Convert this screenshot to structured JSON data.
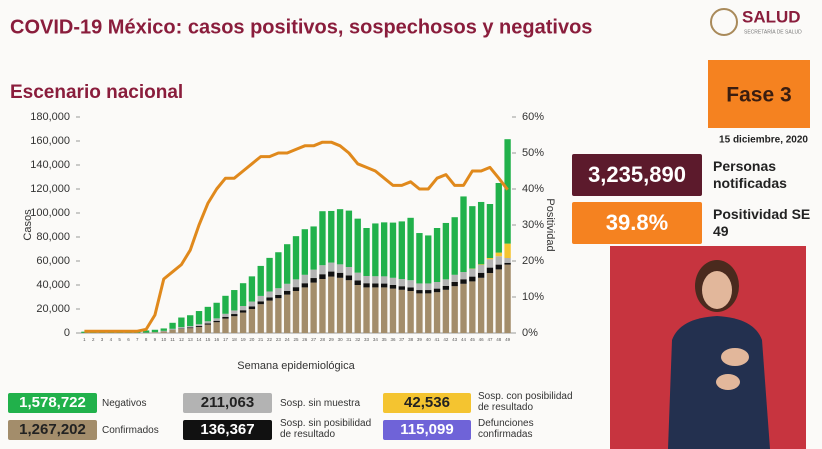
{
  "header": {
    "title": "COVID-19 México: casos positivos, sospechosos y negativos",
    "logo": "SALUD",
    "logo_sub": "SECRETARÍA DE SALUD"
  },
  "subtitle": "Escenario nacional",
  "phase": "Fase 3",
  "date": "15 diciembre, 2020",
  "notified": {
    "value": "3,235,890",
    "label": "Personas notificadas"
  },
  "positivity": {
    "value": "39.8%",
    "label": "Positividad SE 49"
  },
  "chart_data": {
    "type": "bar",
    "stacked": true,
    "x_label": "Semana epidemiológica",
    "y_label": "Casos",
    "categories": [
      "1",
      "2",
      "3",
      "4",
      "5",
      "6",
      "7",
      "8",
      "9",
      "10",
      "11",
      "12",
      "13",
      "14",
      "15",
      "16",
      "17",
      "18",
      "19",
      "20",
      "21",
      "22",
      "23",
      "24",
      "25",
      "26",
      "27",
      "28",
      "29",
      "30",
      "31",
      "32",
      "33",
      "34",
      "35",
      "36",
      "37",
      "38",
      "39",
      "40",
      "41",
      "42",
      "43",
      "44",
      "45",
      "46",
      "47",
      "48",
      "49"
    ],
    "ylim": [
      0,
      180000
    ],
    "yticks": [
      0,
      {
        "value": 20000,
        "label": "20,000"
      },
      {
        "value": 40000,
        "label": "40,000"
      },
      {
        "value": 60000,
        "label": "60,000"
      },
      {
        "value": 80000,
        "label": "80,000"
      },
      {
        "value": 100000,
        "label": "100,000"
      },
      {
        "value": 120000,
        "label": "120,000"
      },
      {
        "value": 140000,
        "label": "140,000"
      },
      {
        "value": 160000,
        "label": "160,000"
      },
      {
        "value": 180000,
        "label": "180,000"
      }
    ],
    "y2lim": [
      0,
      60
    ],
    "y2ticks": [
      {
        "value": 0,
        "label": "0%"
      },
      {
        "value": 10,
        "label": "10%"
      },
      {
        "value": 20,
        "label": "20%"
      },
      {
        "value": 30,
        "label": "30%"
      },
      {
        "value": 40,
        "label": "40%"
      },
      {
        "value": 50,
        "label": "50%"
      },
      {
        "value": 60,
        "label": "60%"
      }
    ],
    "series": [
      {
        "name": "Confirmados",
        "color": "#a38d6b",
        "total": "1,267,202",
        "values": [
          0,
          0,
          1,
          5,
          10,
          20,
          40,
          200,
          600,
          1200,
          2500,
          3500,
          4000,
          5000,
          7000,
          9000,
          12000,
          14000,
          17000,
          20000,
          24000,
          27000,
          29000,
          32000,
          35000,
          38000,
          42000,
          45000,
          47000,
          46000,
          44000,
          40000,
          38000,
          38000,
          38000,
          37000,
          36000,
          35000,
          33000,
          33000,
          34000,
          36000,
          39000,
          41000,
          43000,
          46000,
          50000,
          53000,
          57000
        ]
      },
      {
        "name": "Sosp. sin posibilidad de resultado",
        "color": "#111111",
        "total": "136,367",
        "values": [
          0,
          0,
          0,
          0,
          0,
          0,
          0,
          0,
          0,
          100,
          200,
          400,
          600,
          800,
          1000,
          1200,
          1500,
          1800,
          2000,
          2200,
          2400,
          2600,
          2800,
          3000,
          3200,
          3500,
          3800,
          4000,
          4200,
          4200,
          4000,
          3800,
          3500,
          3300,
          3200,
          3000,
          3000,
          3000,
          2800,
          2800,
          3000,
          3200,
          3500,
          3800,
          4000,
          4200,
          4500,
          4000,
          1500
        ]
      },
      {
        "name": "Sosp. sin muestra",
        "color": "#b3b3b3",
        "total": "211,063",
        "values": [
          100,
          100,
          100,
          100,
          100,
          100,
          100,
          100,
          100,
          500,
          800,
          1000,
          1200,
          1500,
          1800,
          2000,
          2500,
          3000,
          3500,
          4000,
          4500,
          5000,
          5500,
          6000,
          6500,
          7000,
          7000,
          7500,
          7500,
          7000,
          7000,
          6500,
          6000,
          6000,
          6000,
          6000,
          6000,
          6000,
          5500,
          5500,
          5500,
          5500,
          6000,
          6000,
          6500,
          6500,
          7000,
          7000,
          4000
        ]
      },
      {
        "name": "Sosp. con posibilidad de resultado",
        "color": "#f4c430",
        "total": "42,536",
        "values": [
          0,
          0,
          0,
          0,
          0,
          0,
          0,
          0,
          0,
          0,
          0,
          0,
          0,
          0,
          0,
          0,
          0,
          0,
          0,
          0,
          0,
          0,
          0,
          0,
          0,
          0,
          0,
          0,
          0,
          0,
          0,
          0,
          0,
          0,
          0,
          0,
          0,
          0,
          0,
          0,
          0,
          0,
          0,
          0,
          200,
          500,
          1000,
          3000,
          12000
        ]
      },
      {
        "name": "Negativos",
        "color": "#21b14b",
        "total": "1,578,722",
        "values": [
          1000,
          1200,
          1300,
          1300,
          1400,
          1500,
          1500,
          1800,
          2000,
          2000,
          5000,
          8000,
          9000,
          11000,
          12000,
          13000,
          15000,
          17000,
          19000,
          21000,
          25000,
          28000,
          30000,
          33000,
          36000,
          38000,
          36000,
          45000,
          43000,
          46000,
          47000,
          45000,
          40000,
          44000,
          45000,
          46000,
          48000,
          52000,
          42000,
          40000,
          45000,
          47000,
          48000,
          63000,
          52000,
          52000,
          45000,
          58000,
          87000
        ]
      },
      {
        "name": "Positividad",
        "type": "line",
        "axis": "y2",
        "color": "#e0891c",
        "values": [
          0.5,
          0.5,
          0.5,
          0.5,
          0.5,
          0.5,
          0.5,
          1,
          5,
          15,
          17,
          19,
          23,
          30,
          36,
          40,
          43,
          43,
          45,
          47,
          49,
          49,
          50,
          50,
          51,
          52,
          52,
          53,
          53,
          52,
          50,
          47,
          46,
          45,
          43,
          41,
          41,
          42,
          40,
          40,
          43,
          44,
          41,
          41,
          45,
          45,
          46,
          43,
          39.8
        ]
      }
    ],
    "extra_totals": [
      {
        "name": "Defunciones confirmadas",
        "color": "#6f63d8",
        "total": "115,099"
      }
    ]
  }
}
